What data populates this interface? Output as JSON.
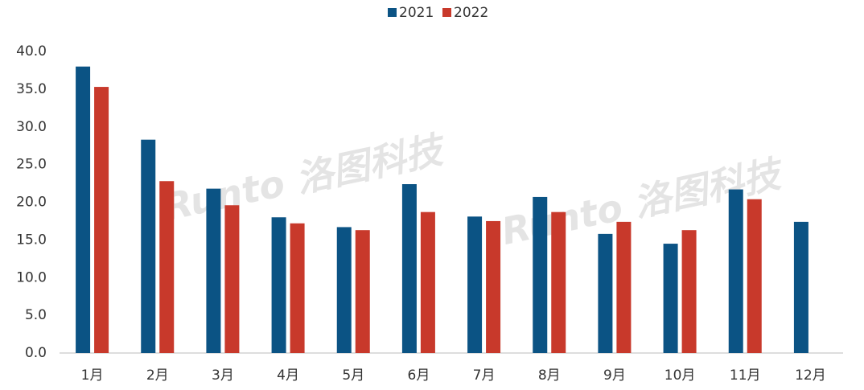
{
  "chart_data": {
    "type": "bar",
    "watermark": "Runto 洛图科技",
    "categories": [
      "1月",
      "2月",
      "3月",
      "4月",
      "5月",
      "6月",
      "7月",
      "8月",
      "9月",
      "10月",
      "11月",
      "12月"
    ],
    "series": [
      {
        "name": "2021",
        "color": "#0b5384",
        "values": [
          38.0,
          28.3,
          21.8,
          18.0,
          16.7,
          22.4,
          18.1,
          20.7,
          15.8,
          14.5,
          21.7,
          17.4
        ]
      },
      {
        "name": "2022",
        "color": "#c8392b",
        "values": [
          35.3,
          22.8,
          19.6,
          17.2,
          16.3,
          18.7,
          17.5,
          18.7,
          17.4,
          16.3,
          20.4,
          null
        ]
      }
    ],
    "ylim": [
      0,
      40
    ],
    "yticks": [
      {
        "value": 0,
        "label": "0.0"
      },
      {
        "value": 5,
        "label": "5.0"
      },
      {
        "value": 10,
        "label": "10.0"
      },
      {
        "value": 15,
        "label": "15.0"
      },
      {
        "value": 20,
        "label": "20.0"
      },
      {
        "value": 25,
        "label": "25.0"
      },
      {
        "value": 30,
        "label": "30.0"
      },
      {
        "value": 35,
        "label": "35.0"
      },
      {
        "value": 40,
        "label": "40.0"
      }
    ],
    "grid": false,
    "legend": "top"
  }
}
